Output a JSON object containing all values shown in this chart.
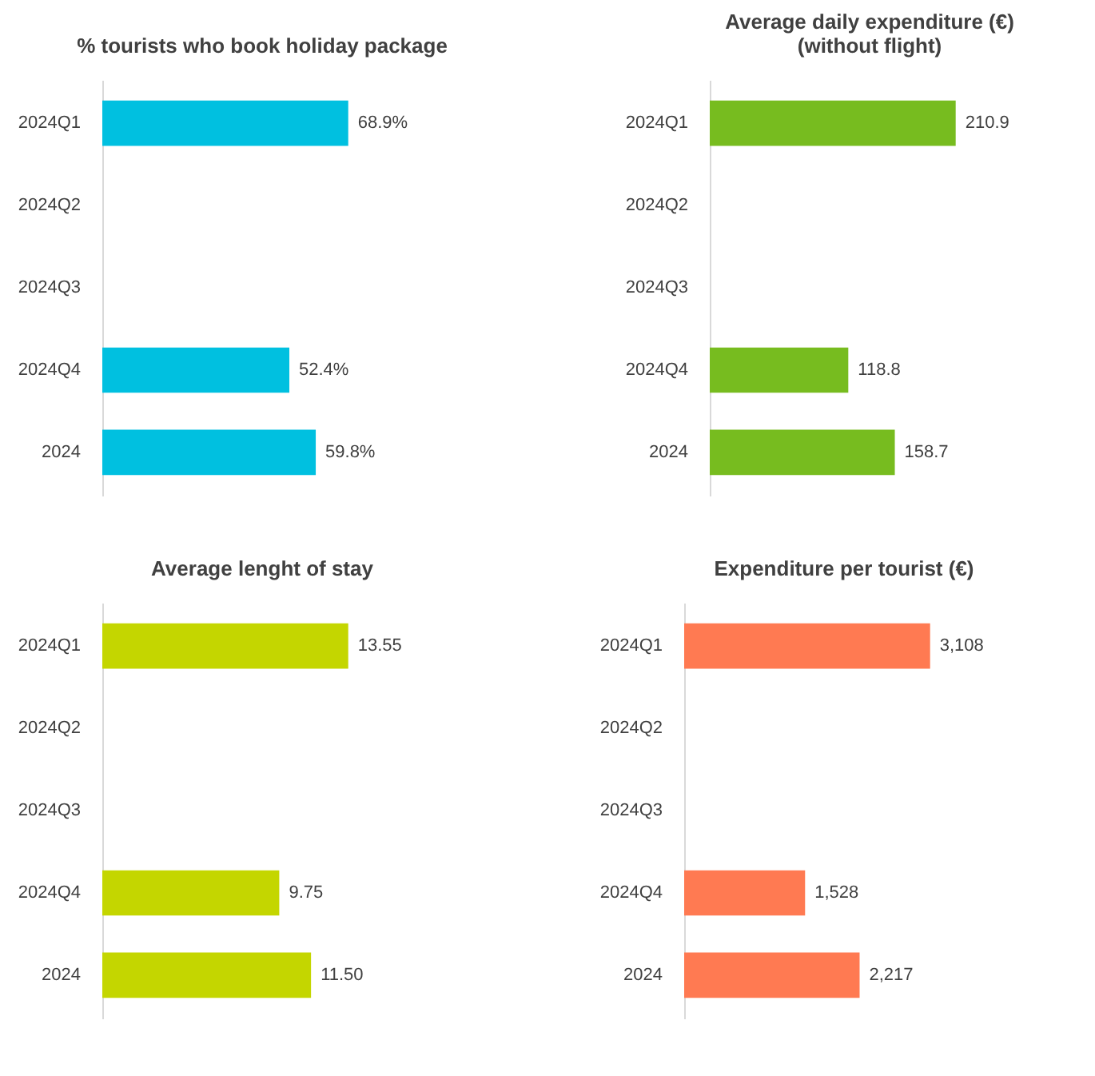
{
  "chart_data": [
    {
      "type": "bar",
      "orientation": "horizontal",
      "title": "% tourists who book holiday package",
      "categories": [
        "2024Q1",
        "2024Q2",
        "2024Q3",
        "2024Q4",
        "2024"
      ],
      "values": [
        68.9,
        null,
        null,
        52.4,
        59.8
      ],
      "value_labels": [
        "68.9%",
        null,
        null,
        "52.4%",
        "59.8%"
      ],
      "colors": [
        "#00c0e0",
        "#00c0e0",
        "#00c0e0",
        "#00c0e0",
        "#00c0e0"
      ]
    },
    {
      "type": "bar",
      "orientation": "horizontal",
      "title": "Average daily expenditure (€)\n(without flight)",
      "categories": [
        "2024Q1",
        "2024Q2",
        "2024Q3",
        "2024Q4",
        "2024"
      ],
      "values": [
        210.9,
        null,
        null,
        118.8,
        158.7
      ],
      "value_labels": [
        "210.9",
        null,
        null,
        "118.8",
        "158.7"
      ],
      "colors": [
        "#77bc1f",
        "#77bc1f",
        "#77bc1f",
        "#77bc1f",
        "#77bc1f"
      ]
    },
    {
      "type": "bar",
      "orientation": "horizontal",
      "title": "Average lenght of stay",
      "categories": [
        "2024Q1",
        "2024Q2",
        "2024Q3",
        "2024Q4",
        "2024"
      ],
      "values": [
        13.55,
        null,
        null,
        9.75,
        11.5
      ],
      "value_labels": [
        "13.55",
        null,
        null,
        "9.75",
        "11.50"
      ],
      "colors": [
        "#c4d600",
        "#c4d600",
        "#c4d600",
        "#c4d600",
        "#c4d600"
      ]
    },
    {
      "type": "bar",
      "orientation": "horizontal",
      "title": "Expenditure per tourist (€)",
      "categories": [
        "2024Q1",
        "2024Q2",
        "2024Q3",
        "2024Q4",
        "2024"
      ],
      "values": [
        3108,
        null,
        null,
        1528,
        2217
      ],
      "value_labels": [
        "3,108",
        null,
        null,
        "1,528",
        "2,217"
      ],
      "colors": [
        "#ff7a52",
        "#ff7a52",
        "#ff7a52",
        "#ff7a52",
        "#ff7a52"
      ]
    }
  ]
}
